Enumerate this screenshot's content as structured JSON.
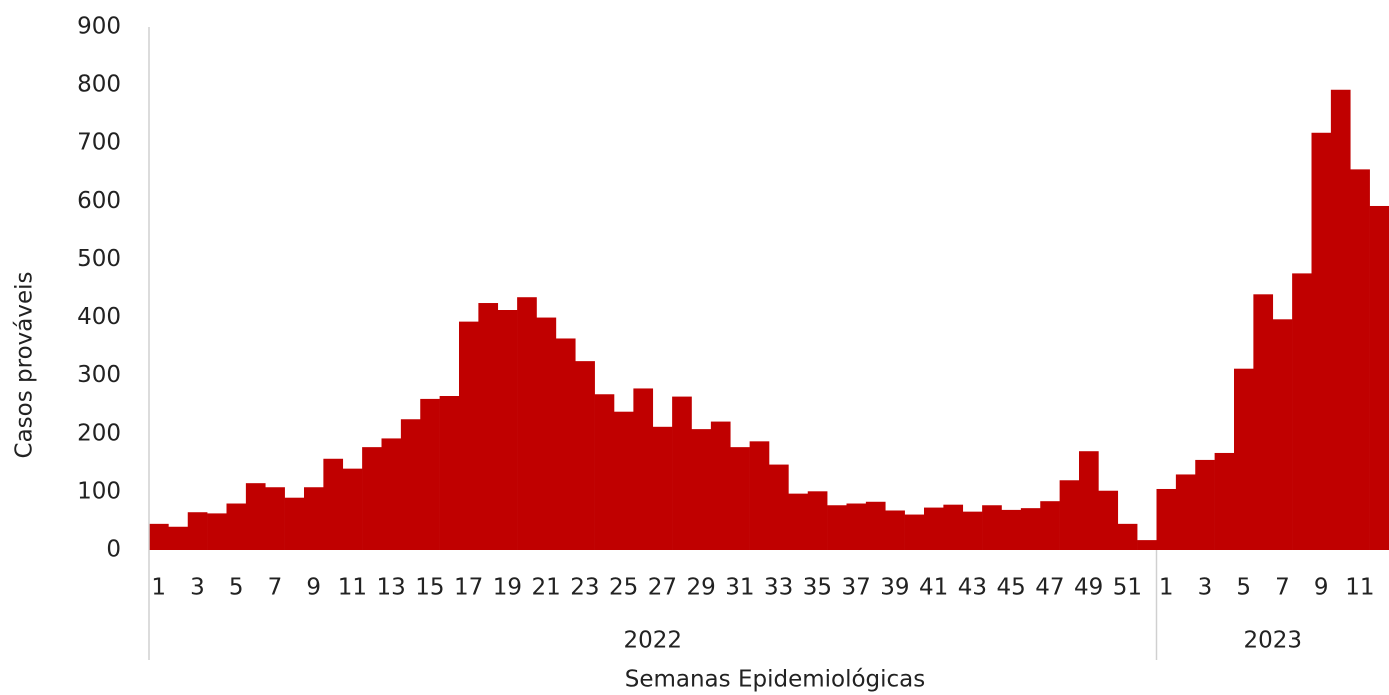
{
  "chart_data": {
    "type": "bar",
    "y_label": "Casos prováveis",
    "x_label": "Semanas Epidemiológicas",
    "color": "#c00000",
    "ylim": [
      0,
      900
    ],
    "yticks": [
      0,
      100,
      200,
      300,
      400,
      500,
      600,
      700,
      800,
      900
    ],
    "grid": false,
    "groups": [
      {
        "name": "2022",
        "categories": [
          "1",
          null,
          "3",
          null,
          "5",
          null,
          "7",
          null,
          "9",
          null,
          "11",
          null,
          "13",
          null,
          "15",
          null,
          "17",
          null,
          "19",
          null,
          "21",
          null,
          "23",
          null,
          "25",
          null,
          "27",
          null,
          "29",
          null,
          "31",
          null,
          "33",
          null,
          "35",
          null,
          "37",
          null,
          "39",
          null,
          "41",
          null,
          "43",
          null,
          "45",
          null,
          "47",
          null,
          "49",
          null,
          "51",
          null
        ],
        "values": [
          45,
          40,
          65,
          63,
          80,
          115,
          108,
          90,
          108,
          157,
          140,
          177,
          192,
          225,
          260,
          265,
          393,
          425,
          413,
          435,
          400,
          364,
          325,
          268,
          238,
          278,
          212,
          264,
          208,
          221,
          177,
          187,
          147,
          97,
          101,
          77,
          80,
          83,
          68,
          61,
          73,
          78,
          66,
          77,
          69,
          72,
          84,
          120,
          170,
          102,
          45,
          17
        ]
      },
      {
        "name": "2023",
        "categories": [
          "1",
          null,
          "3",
          null,
          "5",
          null,
          "7",
          null,
          "9",
          null,
          "11",
          null
        ],
        "values": [
          105,
          130,
          155,
          167,
          312,
          440,
          397,
          476,
          718,
          792,
          655,
          592
        ]
      }
    ]
  }
}
